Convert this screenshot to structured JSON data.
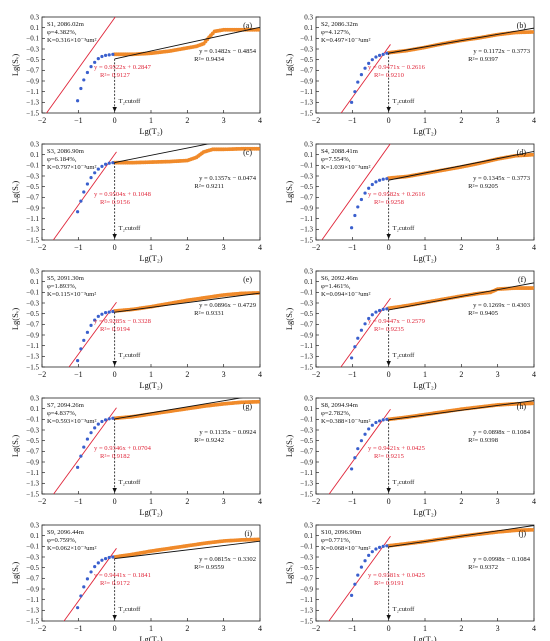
{
  "chart_data": {
    "type": "scatter",
    "xlim": [
      -2,
      4
    ],
    "ylim": [
      -1.5,
      0.3
    ],
    "xticks": [
      -2,
      -1,
      0,
      1,
      2,
      3,
      4
    ],
    "yticks": [
      0.3,
      0.1,
      -0.1,
      -0.3,
      -0.5,
      -0.7,
      -0.9,
      -1.1,
      -1.3,
      -1.5
    ],
    "xlabel": "Lg(T₂)",
    "ylabel": "Lg(Sᵥ)",
    "cutoff_label": "T₂cutoff",
    "colors": {
      "points_small": "#3a5fcd",
      "points_large": "#f08a2a",
      "fit_small": "#e0263a",
      "fit_large": "#111111"
    },
    "panels": [
      {
        "tag": "(a)",
        "sample": "S1, 2086.02m",
        "phi": "φ=4.382%,",
        "perm": "K=0.316×10⁻³um²",
        "red_eq": "y = 0.9522x + 0.2847",
        "red_r2": "R²= 0.9127",
        "black_eq": "y = 0.1482x − 0.4854",
        "black_r2": "R²= 0.9434",
        "red_fit": [
          0.9522,
          0.2847
        ],
        "black_fit": [
          0.1482,
          -0.4854
        ],
        "blue_points": [
          [
            -1.02,
            -1.27
          ],
          [
            -0.93,
            -1.04
          ],
          [
            -0.85,
            -0.88
          ],
          [
            -0.75,
            -0.74
          ],
          [
            -0.65,
            -0.63
          ],
          [
            -0.55,
            -0.55
          ],
          [
            -0.45,
            -0.48
          ],
          [
            -0.35,
            -0.44
          ],
          [
            -0.25,
            -0.42
          ],
          [
            -0.15,
            -0.41
          ],
          [
            -0.05,
            -0.4
          ]
        ],
        "orange_curve": [
          [
            0,
            -0.4
          ],
          [
            0.5,
            -0.4
          ],
          [
            1,
            -0.38
          ],
          [
            1.5,
            -0.34
          ],
          [
            2,
            -0.28
          ],
          [
            2.25,
            -0.25
          ],
          [
            2.45,
            -0.2
          ],
          [
            2.6,
            -0.08
          ],
          [
            2.75,
            0.03
          ],
          [
            3,
            0.06
          ],
          [
            3.5,
            0.06
          ],
          [
            4,
            0.06
          ]
        ]
      },
      {
        "tag": "(b)",
        "sample": "S2, 2086.32m",
        "phi": "φ=4.127%,",
        "perm": "K=0.497×10⁻³um²",
        "red_eq": "y = 0.9471x − 0.2616",
        "red_r2": "R²= 0.9210",
        "black_eq": "y = 0.1172x − 0.3773",
        "black_r2": "R²= 0.9397",
        "red_fit": [
          0.9471,
          -0.2616
        ],
        "black_fit": [
          0.1172,
          -0.3773
        ],
        "blue_points": [
          [
            -1.02,
            -1.3
          ],
          [
            -0.93,
            -1.1
          ],
          [
            -0.85,
            -0.92
          ],
          [
            -0.75,
            -0.78
          ],
          [
            -0.65,
            -0.66
          ],
          [
            -0.55,
            -0.57
          ],
          [
            -0.45,
            -0.5
          ],
          [
            -0.35,
            -0.45
          ],
          [
            -0.25,
            -0.42
          ],
          [
            -0.15,
            -0.4
          ],
          [
            -0.05,
            -0.38
          ]
        ],
        "orange_curve": [
          [
            0,
            -0.37
          ],
          [
            0.5,
            -0.33
          ],
          [
            1,
            -0.27
          ],
          [
            1.5,
            -0.2
          ],
          [
            2,
            -0.14
          ],
          [
            2.5,
            -0.09
          ],
          [
            3,
            -0.03
          ],
          [
            3.5,
            0.01
          ],
          [
            4,
            0.02
          ]
        ]
      },
      {
        "tag": "(c)",
        "sample": "S3, 2086.90m",
        "phi": "φ=6.184%,",
        "perm": "K=0.797×10⁻³um²",
        "red_eq": "y = 0.9504x + 0.1048",
        "red_r2": "R²= 0.9156",
        "black_eq": "y = 0.1357x − 0.0474",
        "black_r2": "R²= 0.9211",
        "red_fit": [
          0.9504,
          0.1048
        ],
        "black_fit": [
          0.1357,
          -0.0474
        ],
        "blue_points": [
          [
            -1.02,
            -0.97
          ],
          [
            -0.93,
            -0.77
          ],
          [
            -0.85,
            -0.6
          ],
          [
            -0.75,
            -0.45
          ],
          [
            -0.65,
            -0.33
          ],
          [
            -0.55,
            -0.24
          ],
          [
            -0.45,
            -0.17
          ],
          [
            -0.35,
            -0.12
          ],
          [
            -0.25,
            -0.08
          ],
          [
            -0.15,
            -0.06
          ],
          [
            -0.05,
            -0.05
          ]
        ],
        "orange_curve": [
          [
            0,
            -0.05
          ],
          [
            0.5,
            -0.05
          ],
          [
            1,
            -0.04
          ],
          [
            1.5,
            -0.03
          ],
          [
            2,
            -0.01
          ],
          [
            2.25,
            0.05
          ],
          [
            2.45,
            0.15
          ],
          [
            2.7,
            0.2
          ],
          [
            3,
            0.2
          ],
          [
            3.5,
            0.21
          ],
          [
            4,
            0.21
          ]
        ]
      },
      {
        "tag": "(d)",
        "sample": "S4, 2088.41m",
        "phi": "φ=7.554%,",
        "perm": "K=1.039×10⁻³um²",
        "red_eq": "y = 0.9582x + 0.2616",
        "red_r2": "R²= 0.9258",
        "black_eq": "y = 0.1345x − 0.3773",
        "black_r2": "R²= 0.9205",
        "red_fit": [
          0.9582,
          0.2616
        ],
        "black_fit": [
          0.1345,
          -0.3773
        ],
        "blue_points": [
          [
            -1.02,
            -1.27
          ],
          [
            -0.93,
            -1.04
          ],
          [
            -0.85,
            -0.88
          ],
          [
            -0.75,
            -0.74
          ],
          [
            -0.65,
            -0.62
          ],
          [
            -0.55,
            -0.53
          ],
          [
            -0.45,
            -0.46
          ],
          [
            -0.35,
            -0.41
          ],
          [
            -0.25,
            -0.38
          ],
          [
            -0.15,
            -0.36
          ],
          [
            -0.05,
            -0.35
          ]
        ],
        "orange_curve": [
          [
            0,
            -0.34
          ],
          [
            0.5,
            -0.31
          ],
          [
            1,
            -0.25
          ],
          [
            1.5,
            -0.19
          ],
          [
            2,
            -0.13
          ],
          [
            2.5,
            -0.06
          ],
          [
            3,
            0.02
          ],
          [
            3.5,
            0.08
          ],
          [
            4,
            0.1
          ]
        ]
      },
      {
        "tag": "(e)",
        "sample": "S5, 2091.30m",
        "phi": "φ=1.893%,",
        "perm": "K=0.115×10⁻³um²",
        "red_eq": "y = 0.9285x − 0.3328",
        "red_r2": "R²= 0.9194",
        "black_eq": "y = 0.0896x − 0.4729",
        "black_r2": "R²= 0.9331",
        "red_fit": [
          0.9285,
          -0.3328
        ],
        "black_fit": [
          0.0896,
          -0.4729
        ],
        "blue_points": [
          [
            -1.02,
            -1.38
          ],
          [
            -0.93,
            -1.16
          ],
          [
            -0.85,
            -1.0
          ],
          [
            -0.75,
            -0.85
          ],
          [
            -0.65,
            -0.72
          ],
          [
            -0.55,
            -0.62
          ],
          [
            -0.45,
            -0.55
          ],
          [
            -0.35,
            -0.51
          ],
          [
            -0.25,
            -0.48
          ],
          [
            -0.15,
            -0.47
          ],
          [
            -0.05,
            -0.46
          ]
        ],
        "orange_curve": [
          [
            0,
            -0.45
          ],
          [
            0.5,
            -0.42
          ],
          [
            1,
            -0.37
          ],
          [
            1.5,
            -0.31
          ],
          [
            2,
            -0.25
          ],
          [
            2.5,
            -0.2
          ],
          [
            3,
            -0.15
          ],
          [
            3.5,
            -0.12
          ],
          [
            4,
            -0.11
          ]
        ]
      },
      {
        "tag": "(f)",
        "sample": "S6, 2092.46m",
        "phi": "φ=1.461%,",
        "perm": "K=0.094×10⁻³um²",
        "red_eq": "y = 0.9447x − 0.2579",
        "red_r2": "R²= 0.9235",
        "black_eq": "y = 0.1269x − 0.4303",
        "black_r2": "R²= 0.9405",
        "red_fit": [
          0.9447,
          -0.2579
        ],
        "black_fit": [
          0.1269,
          -0.4303
        ],
        "blue_points": [
          [
            -1.02,
            -1.33
          ],
          [
            -0.93,
            -1.12
          ],
          [
            -0.85,
            -0.96
          ],
          [
            -0.75,
            -0.81
          ],
          [
            -0.65,
            -0.69
          ],
          [
            -0.55,
            -0.59
          ],
          [
            -0.45,
            -0.52
          ],
          [
            -0.35,
            -0.47
          ],
          [
            -0.25,
            -0.44
          ],
          [
            -0.15,
            -0.42
          ],
          [
            -0.05,
            -0.41
          ]
        ],
        "orange_curve": [
          [
            0,
            -0.4
          ],
          [
            0.5,
            -0.35
          ],
          [
            1,
            -0.29
          ],
          [
            1.5,
            -0.23
          ],
          [
            2,
            -0.17
          ],
          [
            2.5,
            -0.12
          ],
          [
            2.8,
            -0.1
          ],
          [
            3,
            -0.04
          ],
          [
            3.5,
            -0.02
          ],
          [
            4,
            -0.02
          ]
        ]
      },
      {
        "tag": "(g)",
        "sample": "S7, 2094.26m",
        "phi": "φ=4.837%,",
        "perm": "K=0.593×10⁻³um²",
        "red_eq": "y = 0.9346x + 0.0704",
        "red_r2": "R²= 0.9182",
        "black_eq": "y = 0.1135x − 0.0924",
        "black_r2": "R²= 0.9242",
        "red_fit": [
          0.9346,
          0.0704
        ],
        "black_fit": [
          0.1135,
          -0.0924
        ],
        "blue_points": [
          [
            -1.02,
            -1.0
          ],
          [
            -0.93,
            -0.79
          ],
          [
            -0.85,
            -0.62
          ],
          [
            -0.75,
            -0.47
          ],
          [
            -0.65,
            -0.35
          ],
          [
            -0.55,
            -0.26
          ],
          [
            -0.45,
            -0.19
          ],
          [
            -0.35,
            -0.14
          ],
          [
            -0.25,
            -0.11
          ],
          [
            -0.15,
            -0.09
          ],
          [
            -0.05,
            -0.08
          ]
        ],
        "orange_curve": [
          [
            0,
            -0.08
          ],
          [
            0.5,
            -0.05
          ],
          [
            1,
            0.0
          ],
          [
            1.5,
            0.05
          ],
          [
            2,
            0.1
          ],
          [
            2.5,
            0.15
          ],
          [
            3,
            0.19
          ],
          [
            3.5,
            0.22
          ],
          [
            4,
            0.23
          ]
        ]
      },
      {
        "tag": "(h)",
        "sample": "S8, 2094.94m",
        "phi": "φ=2.782%,",
        "perm": "K=0.388×10⁻³um²",
        "red_eq": "y = 0.9421x + 0.0425",
        "red_r2": "R²= 0.9215",
        "black_eq": "y = 0.0898x − 0.1084",
        "black_r2": "R²= 0.9398",
        "red_fit": [
          0.9421,
          0.0425
        ],
        "black_fit": [
          0.0898,
          -0.1084
        ],
        "blue_points": [
          [
            -1.02,
            -1.03
          ],
          [
            -0.93,
            -0.82
          ],
          [
            -0.85,
            -0.65
          ],
          [
            -0.75,
            -0.5
          ],
          [
            -0.65,
            -0.38
          ],
          [
            -0.55,
            -0.28
          ],
          [
            -0.45,
            -0.21
          ],
          [
            -0.35,
            -0.16
          ],
          [
            -0.25,
            -0.13
          ],
          [
            -0.15,
            -0.11
          ],
          [
            -0.05,
            -0.1
          ]
        ],
        "orange_curve": [
          [
            0,
            -0.1
          ],
          [
            0.5,
            -0.06
          ],
          [
            1,
            -0.01
          ],
          [
            1.5,
            0.04
          ],
          [
            2,
            0.09
          ],
          [
            2.5,
            0.13
          ],
          [
            3,
            0.17
          ],
          [
            3.5,
            0.19
          ],
          [
            4,
            0.2
          ]
        ]
      },
      {
        "tag": "(i)",
        "sample": "S9, 2096.44m",
        "phi": "φ=0.759%,",
        "perm": "K=0.062×10⁻³um²",
        "red_eq": "y = 0.9441x − 0.1841",
        "red_r2": "R²= 0.9172",
        "black_eq": "y = 0.0815x − 0.3302",
        "black_r2": "R²= 0.9559",
        "red_fit": [
          0.9441,
          -0.1841
        ],
        "black_fit": [
          0.0815,
          -0.3302
        ],
        "blue_points": [
          [
            -1.02,
            -1.25
          ],
          [
            -0.93,
            -1.03
          ],
          [
            -0.85,
            -0.86
          ],
          [
            -0.75,
            -0.71
          ],
          [
            -0.65,
            -0.58
          ],
          [
            -0.55,
            -0.48
          ],
          [
            -0.45,
            -0.41
          ],
          [
            -0.35,
            -0.36
          ],
          [
            -0.25,
            -0.33
          ],
          [
            -0.15,
            -0.31
          ],
          [
            -0.05,
            -0.3
          ]
        ],
        "orange_curve": [
          [
            0,
            -0.3
          ],
          [
            0.5,
            -0.25
          ],
          [
            1,
            -0.19
          ],
          [
            1.5,
            -0.14
          ],
          [
            2,
            -0.09
          ],
          [
            2.5,
            -0.04
          ],
          [
            3,
            0.0
          ],
          [
            3.5,
            0.02
          ],
          [
            4,
            0.03
          ]
        ]
      },
      {
        "tag": "(j)",
        "sample": "S10, 2096.90m",
        "phi": "φ=0.771%,",
        "perm": "K=0.068×10⁻³um²",
        "red_eq": "y = 0.9381x + 0.0425",
        "red_r2": "R²= 0.9191",
        "black_eq": "y = 0.0998x − 0.1084",
        "black_r2": "R²= 0.9372",
        "red_fit": [
          0.9381,
          0.0425
        ],
        "black_fit": [
          0.0998,
          -0.1084
        ],
        "blue_points": [
          [
            -1.02,
            -1.02
          ],
          [
            -0.93,
            -0.81
          ],
          [
            -0.85,
            -0.64
          ],
          [
            -0.75,
            -0.49
          ],
          [
            -0.65,
            -0.37
          ],
          [
            -0.55,
            -0.27
          ],
          [
            -0.45,
            -0.2
          ],
          [
            -0.35,
            -0.15
          ],
          [
            -0.25,
            -0.12
          ],
          [
            -0.15,
            -0.1
          ],
          [
            -0.05,
            -0.09
          ]
        ],
        "orange_curve": [
          [
            0,
            -0.09
          ],
          [
            0.5,
            -0.05
          ],
          [
            1,
            -0.01
          ],
          [
            1.5,
            0.04
          ],
          [
            2,
            0.09
          ],
          [
            2.5,
            0.13
          ],
          [
            3,
            0.17
          ],
          [
            3.5,
            0.2
          ],
          [
            4,
            0.21
          ]
        ]
      }
    ]
  }
}
